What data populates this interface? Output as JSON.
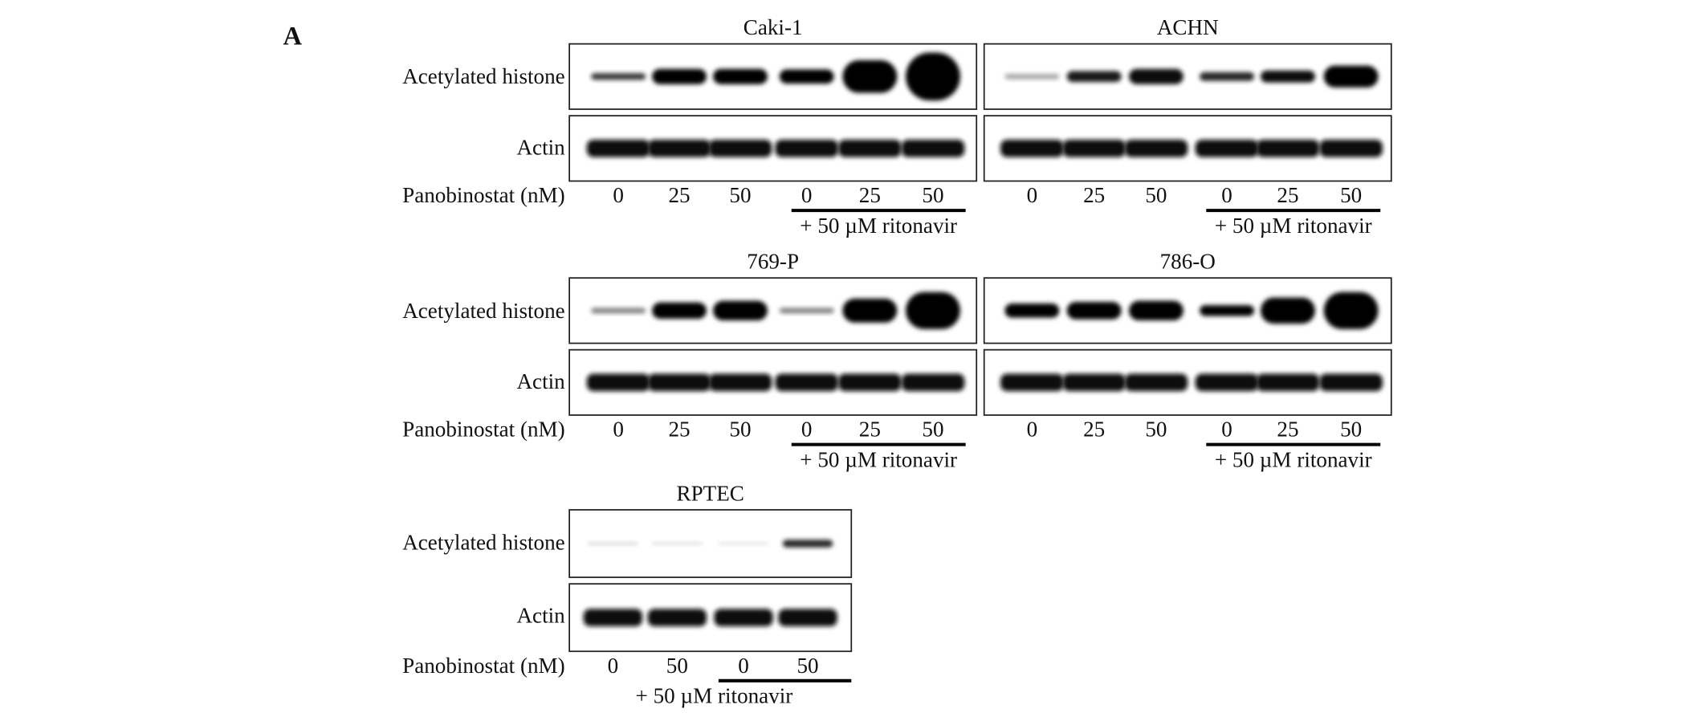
{
  "panel_label": "A",
  "blot_rows": [
    {
      "row_labels": [
        "Acetylated histone",
        "Actin"
      ],
      "dose_label": "Panobinostat (nM)",
      "blots": [
        {
          "title": "Caki-1",
          "lanes": [
            0,
            25,
            50,
            0,
            25,
            50
          ],
          "treatment": "+ 50 µM ritonavir"
        },
        {
          "title": "ACHN",
          "lanes": [
            0,
            25,
            50,
            0,
            25,
            50
          ],
          "treatment": "+ 50 µM ritonavir"
        }
      ]
    },
    {
      "row_labels": [
        "Acetylated histone",
        "Actin"
      ],
      "dose_label": "Panobinostat (nM)",
      "blots": [
        {
          "title": "769-P",
          "lanes": [
            0,
            25,
            50,
            0,
            25,
            50
          ],
          "treatment": "+ 50 µM ritonavir"
        },
        {
          "title": "786-O",
          "lanes": [
            0,
            25,
            50,
            0,
            25,
            50
          ],
          "treatment": "+ 50 µM ritonavir"
        }
      ]
    },
    {
      "row_labels": [
        "Acetylated histone",
        "Actin"
      ],
      "dose_label": "Panobinostat (nM)",
      "blots": [
        {
          "title": "RPTEC",
          "lanes": [
            0,
            50,
            0,
            50
          ],
          "treatment": "+ 50 µM ritonavir"
        }
      ]
    }
  ]
}
